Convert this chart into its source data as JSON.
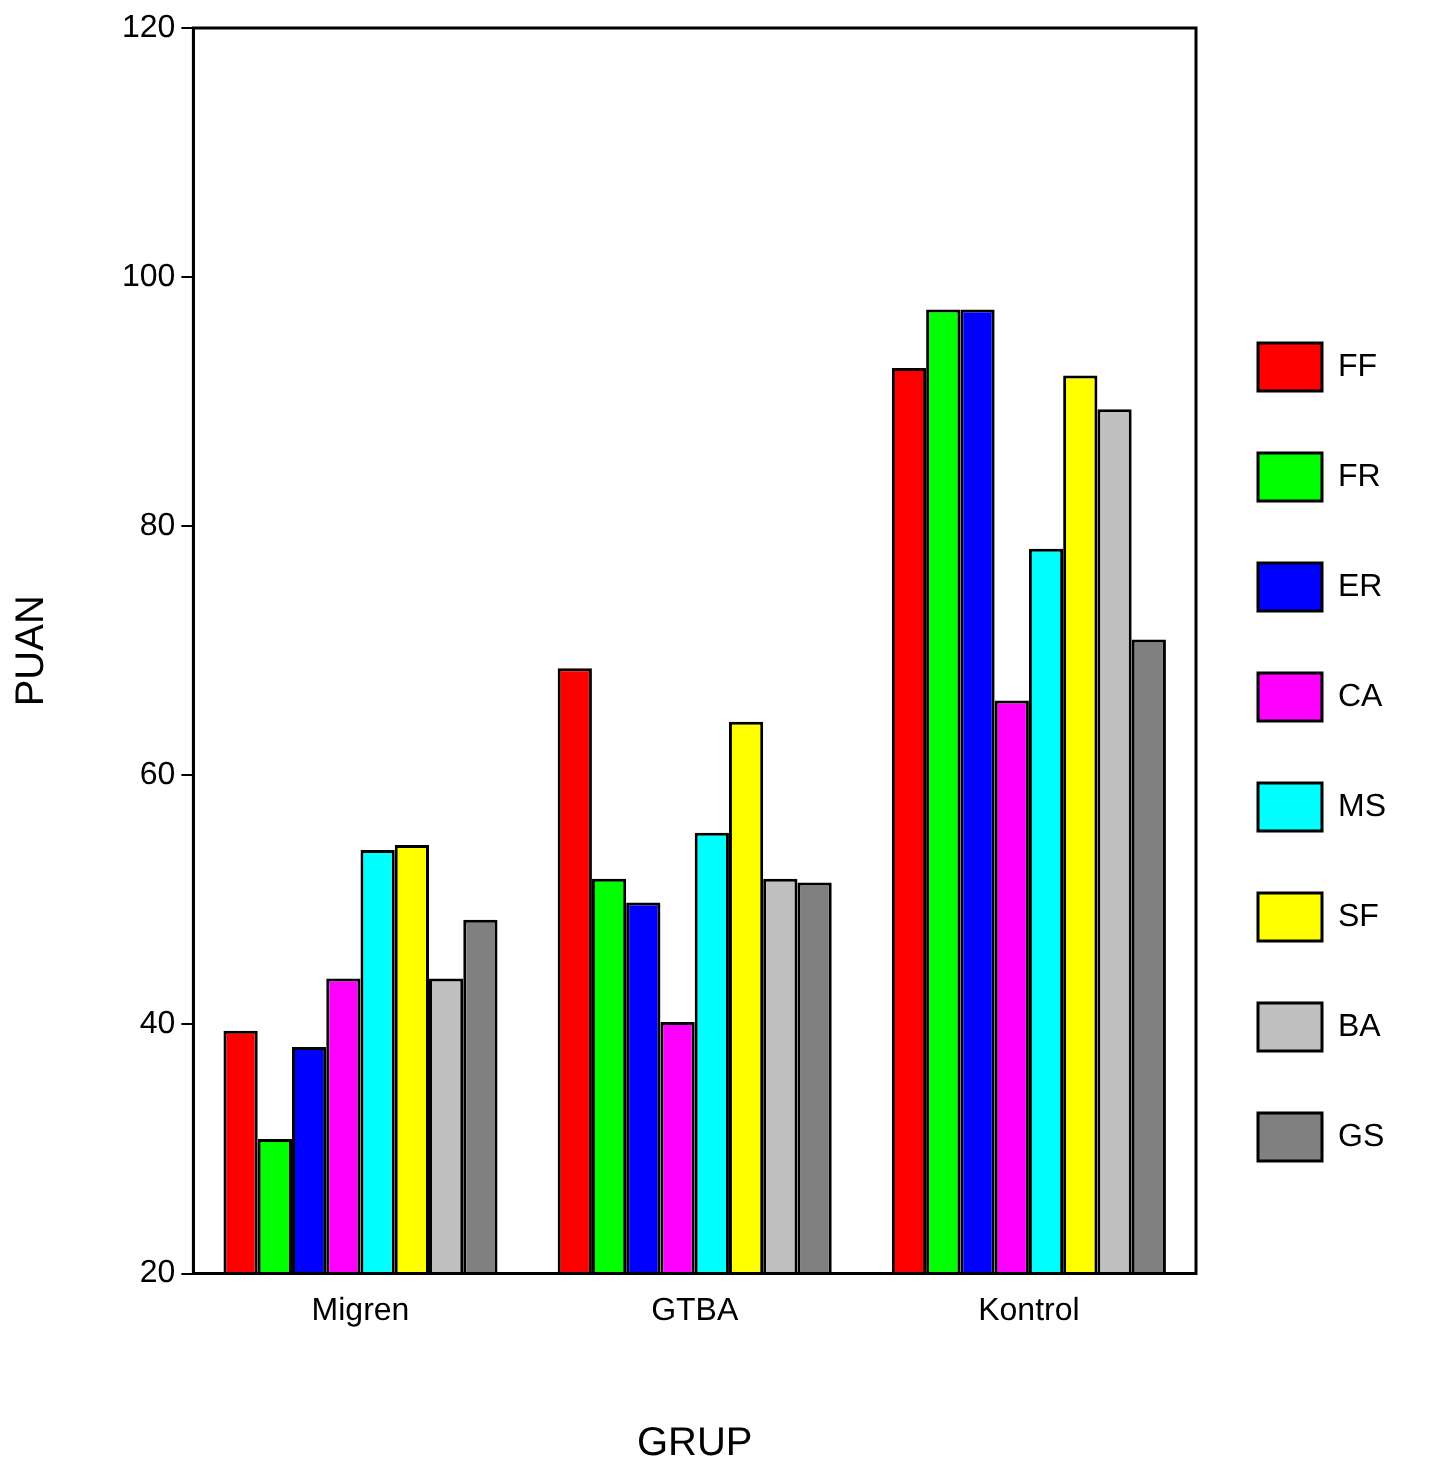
{
  "chart_data": {
    "type": "bar",
    "xlabel": "GRUP",
    "ylabel": "PUAN",
    "categories": [
      "Migren",
      "GTBA",
      "Kontrol"
    ],
    "series": [
      {
        "name": "FF",
        "color": "#ff0000",
        "values": [
          39.5,
          68.6,
          92.7
        ]
      },
      {
        "name": "FR",
        "color": "#00ff00",
        "values": [
          30.8,
          51.7,
          97.4
        ]
      },
      {
        "name": "ER",
        "color": "#0000ff",
        "values": [
          38.2,
          49.8,
          97.4
        ]
      },
      {
        "name": "CA",
        "color": "#ff00ff",
        "values": [
          43.7,
          40.2,
          66.0
        ]
      },
      {
        "name": "MS",
        "color": "#00ffff",
        "values": [
          54.0,
          55.4,
          78.2
        ]
      },
      {
        "name": "SF",
        "color": "#ffff00",
        "values": [
          54.4,
          64.3,
          92.1
        ]
      },
      {
        "name": "BA",
        "color": "#c0c0c0",
        "values": [
          43.7,
          51.7,
          89.4
        ]
      },
      {
        "name": "GS",
        "color": "#808080",
        "values": [
          48.4,
          51.4,
          70.9
        ]
      }
    ],
    "ylim": [
      20,
      120
    ],
    "yticks": [
      20,
      40,
      60,
      80,
      100,
      120
    ],
    "grid": false,
    "legend": "right"
  }
}
